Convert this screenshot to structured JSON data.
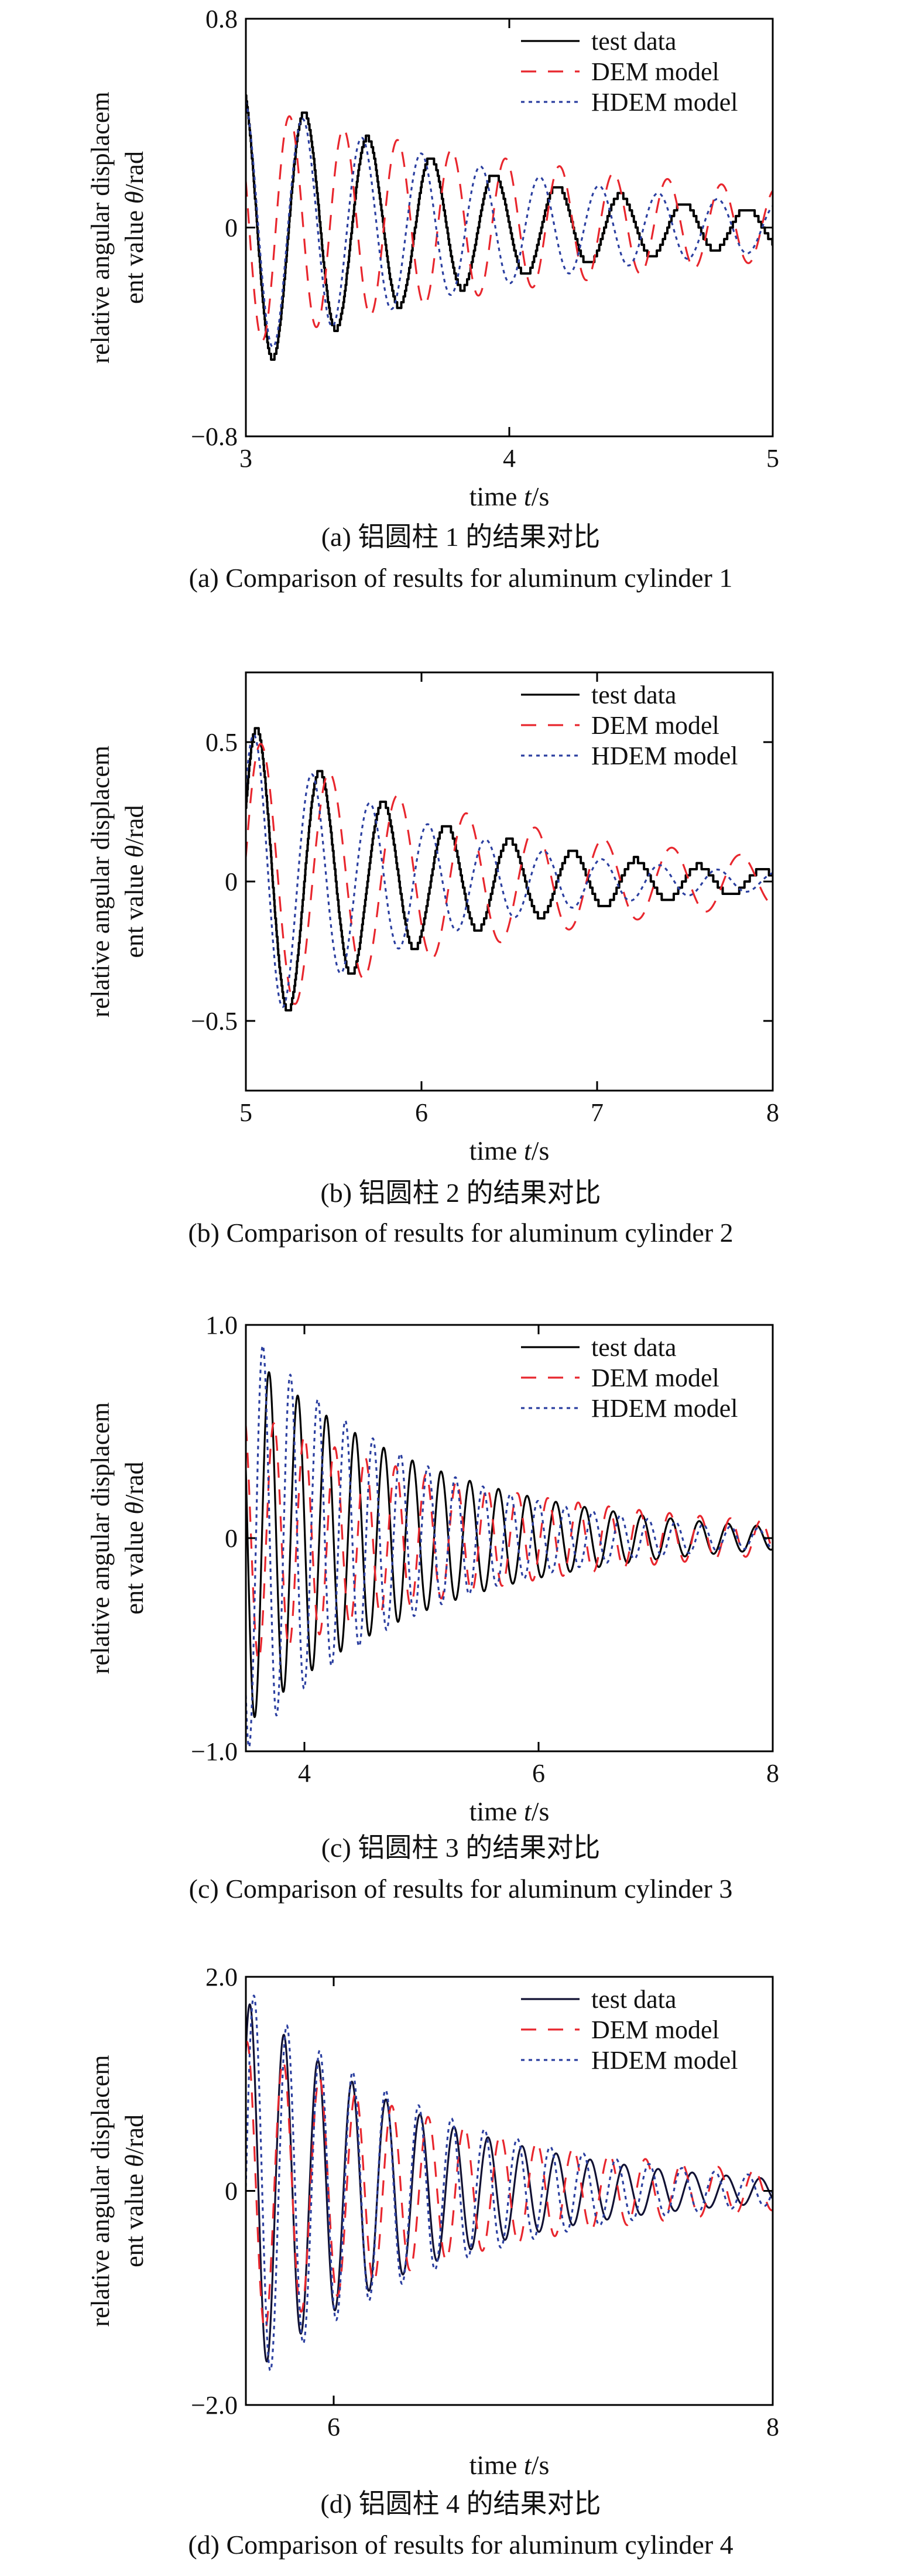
{
  "chart_data": [
    {
      "type": "line",
      "xlabel_text": "time ",
      "xlabel_var": "t",
      "xlabel_unit": "/s",
      "ylabel_line1": "relative angular displacem",
      "ylabel_line2_text": "ent value ",
      "ylabel_line2_var": "θ",
      "ylabel_line2_unit": "/rad",
      "caption_cn": "(a) 铝圆柱 1 的结果对比",
      "caption_en": "(a) Comparison of results for aluminum cylinder 1",
      "xlim": [
        3,
        5
      ],
      "ylim": [
        -0.8,
        0.8
      ],
      "xticks": [
        3,
        4,
        5
      ],
      "xtick_labels": [
        "3",
        "4",
        "5"
      ],
      "yticks": [
        -0.8,
        0,
        0.8
      ],
      "ytick_labels": [
        "−0.8",
        "0",
        "0.8"
      ],
      "legend_position": "top-right",
      "series": [
        {
          "name": "test data",
          "color": "#000000",
          "dash": "solid",
          "stepped": true,
          "amp0": 0.56,
          "t0": 3.0,
          "period": 0.24,
          "decay": 1.05,
          "phase": 0.45,
          "offset": 0.0
        },
        {
          "name": "DEM model",
          "color": "#e8262d",
          "dash": "dashed",
          "amp0": 0.46,
          "t0": 3.0,
          "period": 0.205,
          "decay": 0.6,
          "phase": 1.2,
          "offset": 0.01
        },
        {
          "name": "HDEM model",
          "color": "#2b3fa0",
          "dash": "dotted",
          "amp0": 0.5,
          "t0": 3.0,
          "period": 0.225,
          "decay": 0.85,
          "phase": 0.25,
          "offset": 0.0
        }
      ]
    },
    {
      "type": "line",
      "xlabel_text": "time ",
      "xlabel_var": "t",
      "xlabel_unit": "/s",
      "ylabel_line1": "relative angular displacem",
      "ylabel_line2_text": "ent value ",
      "ylabel_line2_var": "θ",
      "ylabel_line2_unit": "/rad",
      "caption_cn": "(b) 铝圆柱 2 的结果对比",
      "caption_en": "(b) Comparison of results for aluminum cylinder 2",
      "xlim": [
        5,
        8
      ],
      "ylim": [
        -0.75,
        0.75
      ],
      "xticks": [
        5,
        6,
        7,
        8
      ],
      "xtick_labels": [
        "5",
        "6",
        "7",
        "8"
      ],
      "yticks": [
        -0.5,
        0,
        0.5
      ],
      "ytick_labels": [
        "−0.5",
        "0",
        "0.5"
      ],
      "legend_position": "top-right",
      "series": [
        {
          "name": "test data",
          "color": "#000000",
          "dash": "solid",
          "stepped": true,
          "amp0": 0.58,
          "t0": 5.0,
          "period": 0.36,
          "decay": 0.9,
          "phase": -1.1,
          "offset": 0.0
        },
        {
          "name": "DEM model",
          "color": "#e8262d",
          "dash": "dashed",
          "amp0": 0.52,
          "t0": 5.0,
          "period": 0.39,
          "decay": 0.6,
          "phase": -1.4,
          "offset": 0.0
        },
        {
          "name": "HDEM model",
          "color": "#2b3fa0",
          "dash": "dotted",
          "amp0": 0.55,
          "t0": 5.0,
          "period": 0.33,
          "decay": 0.95,
          "phase": -0.9,
          "offset": 0.0
        }
      ]
    },
    {
      "type": "line",
      "xlabel_text": "time ",
      "xlabel_var": "t",
      "xlabel_unit": "/s",
      "ylabel_line1": "relative angular displacem",
      "ylabel_line2_text": "ent value ",
      "ylabel_line2_var": "θ",
      "ylabel_line2_unit": "/rad",
      "caption_cn": "(c) 铝圆柱 3 的结果对比",
      "caption_en": "(c) Comparison of results for aluminum cylinder 3",
      "xlim": [
        3.5,
        8
      ],
      "ylim": [
        -1.0,
        1.0
      ],
      "xticks": [
        4,
        6,
        8
      ],
      "xtick_labels": [
        "4",
        "6",
        "8"
      ],
      "yticks": [
        -1.0,
        0,
        1.0
      ],
      "ytick_labels": [
        "−1.0",
        "0",
        "1.0"
      ],
      "legend_position": "top-right",
      "series": [
        {
          "name": "test data",
          "color": "#000000",
          "dash": "solid",
          "amp0": 0.88,
          "t0": 3.5,
          "period": 0.245,
          "decay": 0.62,
          "phase": 1.2,
          "offset": 0.0
        },
        {
          "name": "DEM model",
          "color": "#e8262d",
          "dash": "dashed",
          "amp0": 0.6,
          "t0": 3.5,
          "period": 0.26,
          "decay": 0.45,
          "phase": 0.5,
          "offset": 0.0
        },
        {
          "name": "HDEM model",
          "color": "#2b3fa0",
          "dash": "dotted",
          "amp0": 1.0,
          "t0": 3.5,
          "period": 0.235,
          "decay": 0.7,
          "phase": 2.4,
          "offset": 0.0
        }
      ]
    },
    {
      "type": "line",
      "xlabel_text": "time ",
      "xlabel_var": "t",
      "xlabel_unit": "/s",
      "ylabel_line1": "relative angular displacem",
      "ylabel_line2_text": "ent value ",
      "ylabel_line2_var": "θ",
      "ylabel_line2_unit": "/rad",
      "caption_cn": "(d) 铝圆柱 4 的结果对比",
      "caption_en": "(d) Comparison of results for aluminum cylinder 4",
      "xlim": [
        5.6,
        8
      ],
      "ylim": [
        -2.0,
        2.0
      ],
      "xticks": [
        6,
        8
      ],
      "xtick_labels": [
        "6",
        "8"
      ],
      "yticks": [
        -2.0,
        0,
        2.0
      ],
      "ytick_labels": [
        "−2.0",
        "0",
        "2.0"
      ],
      "legend_position": "top-right",
      "series": [
        {
          "name": "test data",
          "color": "#111133",
          "dash": "solid",
          "amp0": 1.78,
          "t0": 5.6,
          "period": 0.155,
          "decay": 1.15,
          "phase": -0.75,
          "offset": 0.0
        },
        {
          "name": "DEM model",
          "color": "#e8262d",
          "dash": "dashed",
          "amp0": 1.4,
          "t0": 5.6,
          "period": 0.165,
          "decay": 0.85,
          "phase": -0.2,
          "offset": 0.0
        },
        {
          "name": "HDEM model",
          "color": "#2b3fa0",
          "dash": "dotted",
          "amp0": 1.9,
          "t0": 5.6,
          "period": 0.15,
          "decay": 1.1,
          "phase": -1.55,
          "offset": 0.0
        }
      ]
    }
  ]
}
